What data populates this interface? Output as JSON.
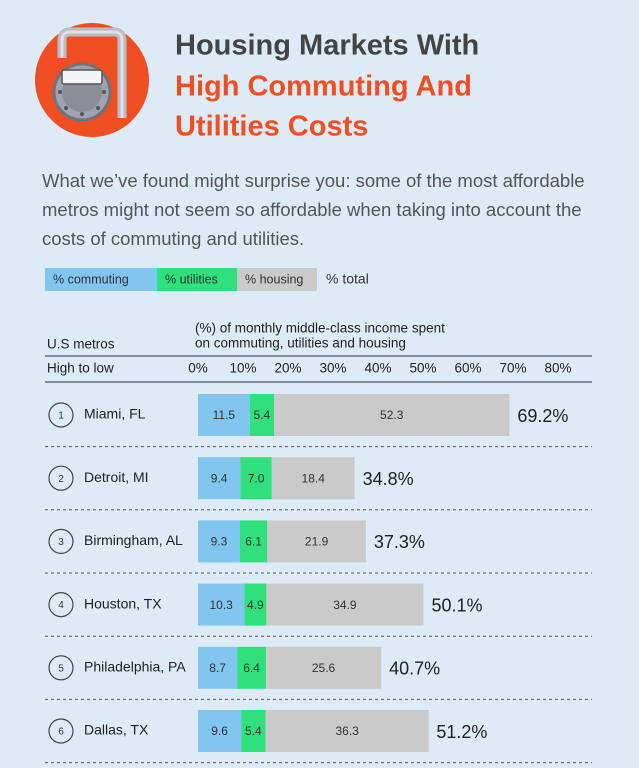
{
  "chart_data": {
    "type": "stacked-bar-horizontal",
    "title_lines": [
      "Housing Markets With",
      "High Commuting And",
      "Utilities Costs"
    ],
    "subtitle": "What we’ve found might surprise you: some of the most affordable metros might not seem so affordable when taking into account the costs of commuting and utilities.",
    "total_legend": "% total",
    "row_header": "U.S metros",
    "row_subheader": "High to low",
    "axis_title_lines": [
      "(%) of monthly middle-class income spent",
      "on commuting, utilities and housing"
    ],
    "ranks": [
      1,
      2,
      3,
      4,
      5,
      6
    ],
    "categories": [
      "Miami, FL",
      "Detroit, MI",
      "Birmingham, AL",
      "Houston, TX",
      "Philadelphia, PA",
      "Dallas, TX"
    ],
    "series": [
      {
        "name": "% commuting",
        "color": "#80c6f0",
        "values": [
          11.5,
          9.4,
          9.3,
          10.3,
          8.7,
          9.6
        ]
      },
      {
        "name": "% utilities",
        "color": "#2fe07c",
        "values": [
          5.4,
          7.0,
          6.1,
          4.9,
          6.4,
          5.4
        ],
        "value_labels": [
          "5.4",
          "7.0",
          "6.1",
          "4.9",
          "6.4",
          "5.4"
        ]
      },
      {
        "name": "% housing",
        "color": "#cacaca",
        "values": [
          52.3,
          18.4,
          21.9,
          34.9,
          25.6,
          36.3
        ]
      }
    ],
    "totals": [
      69.2,
      34.8,
      37.3,
      50.1,
      40.7,
      51.2
    ],
    "total_labels": [
      "69.2%",
      "34.8%",
      "37.3%",
      "50.1%",
      "40.7%",
      "51.2%"
    ],
    "xlim": [
      0,
      80
    ],
    "xticks": [
      {
        "value": 0,
        "label": "0%"
      },
      {
        "value": 10,
        "label": "10%"
      },
      {
        "value": 20,
        "label": "20%"
      },
      {
        "value": 30,
        "label": "30%"
      },
      {
        "value": 40,
        "label": "40%"
      },
      {
        "value": 50,
        "label": "50%"
      },
      {
        "value": 60,
        "label": "60%"
      },
      {
        "value": 70,
        "label": "70%"
      },
      {
        "value": 80,
        "label": "80%"
      }
    ]
  }
}
